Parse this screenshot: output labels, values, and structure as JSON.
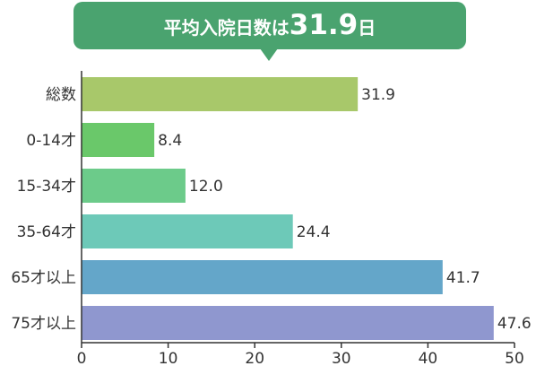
{
  "banner": {
    "text_prefix": "平均入院日数は",
    "text_value": "31.9",
    "text_suffix": "日",
    "background": "#4aa36f"
  },
  "chart_data": {
    "type": "bar",
    "orientation": "horizontal",
    "categories": [
      "総数",
      "0-14才",
      "15-34才",
      "35-64才",
      "65才以上",
      "75才以上"
    ],
    "values": [
      31.9,
      8.4,
      12.0,
      24.4,
      41.7,
      47.6
    ],
    "value_labels": [
      "31.9",
      "8.4",
      "12.0",
      "24.4",
      "41.7",
      "47.6"
    ],
    "colors": [
      "#a8c86a",
      "#6ac86a",
      "#6ccb8a",
      "#6dc9b8",
      "#64a6c9",
      "#8f97cf"
    ],
    "xlim": [
      0,
      50
    ],
    "xticks": [
      0,
      10,
      20,
      30,
      40,
      50
    ],
    "xtick_labels": [
      "0",
      "10",
      "20",
      "30",
      "40",
      "50"
    ],
    "grid": false
  }
}
